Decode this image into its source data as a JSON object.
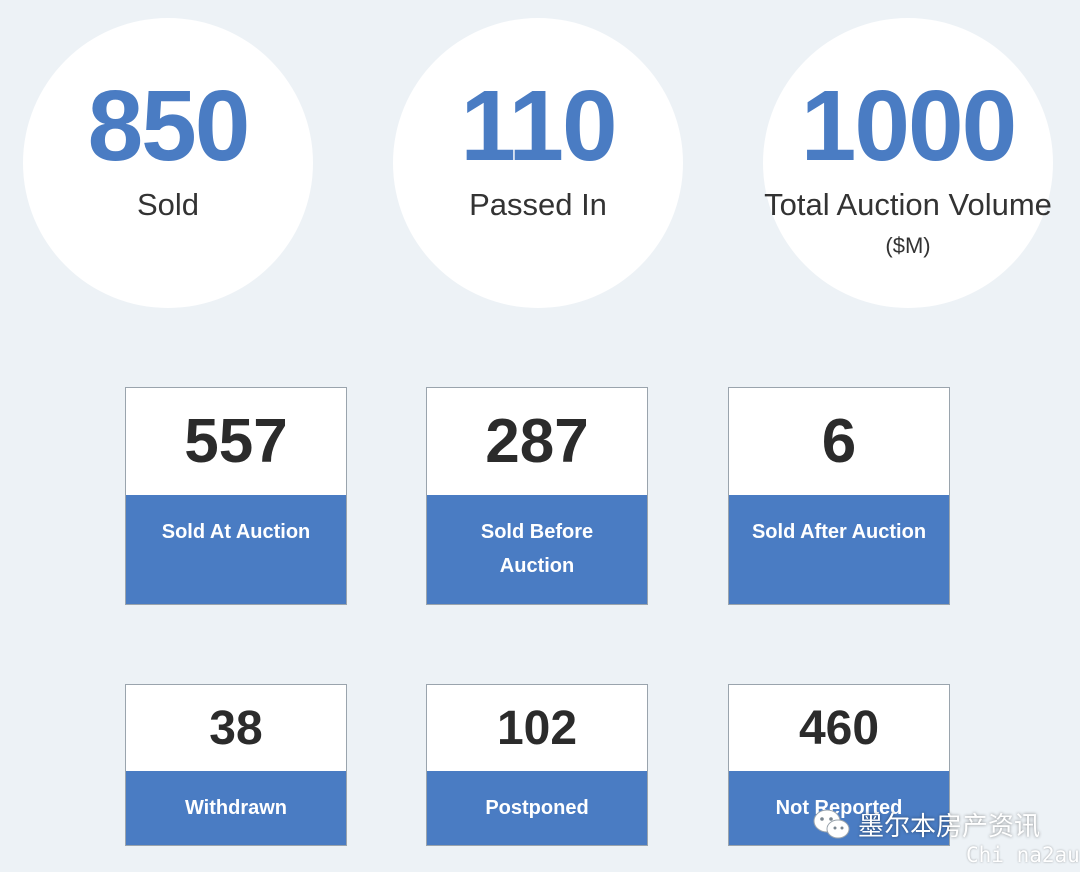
{
  "colors": {
    "background": "#edf2f6",
    "accent": "#4a7cc3",
    "number_dark": "#2b2b2b"
  },
  "summary": [
    {
      "value": "850",
      "label": "Sold",
      "unit": ""
    },
    {
      "value": "110",
      "label": "Passed In",
      "unit": ""
    },
    {
      "value": "1000",
      "label": "Total Auction Volume",
      "unit": "($M)"
    }
  ],
  "breakdown": [
    {
      "value": "557",
      "label": "Sold At Auction"
    },
    {
      "value": "287",
      "label": "Sold Before Auction"
    },
    {
      "value": "6",
      "label": "Sold After Auction"
    }
  ],
  "other": [
    {
      "value": "38",
      "label": "Withdrawn"
    },
    {
      "value": "102",
      "label": "Postponed"
    },
    {
      "value": "460",
      "label": "Not Reported"
    }
  ],
  "watermark": {
    "icon": "wechat-icon",
    "text": "墨尔本房产资讯",
    "sub": "Chi na2au"
  }
}
